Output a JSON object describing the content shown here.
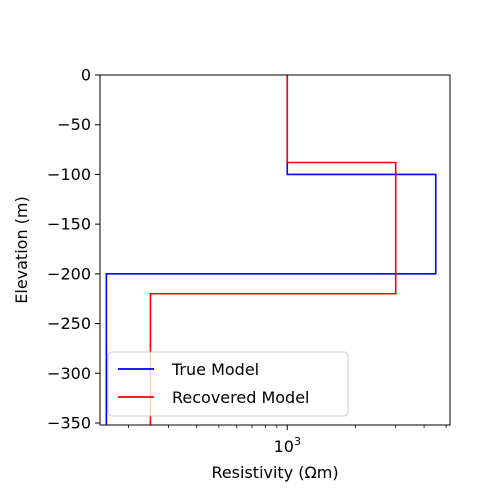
{
  "chart_data": {
    "type": "line",
    "xlabel": "Resistivity (Ωm)",
    "ylabel": "Elevation (m)",
    "xscale": "log",
    "xlim": [
      150,
      5200
    ],
    "ylim": [
      -352,
      0
    ],
    "grid": false,
    "legend_position": "lower-left",
    "x_ticks": [
      {
        "value": 1000,
        "label": "10³"
      }
    ],
    "y_ticks": [
      {
        "value": 0,
        "label": "0"
      },
      {
        "value": -50,
        "label": "−50"
      },
      {
        "value": -100,
        "label": "−100"
      },
      {
        "value": -150,
        "label": "−150"
      },
      {
        "value": -200,
        "label": "−200"
      },
      {
        "value": -250,
        "label": "−250"
      },
      {
        "value": -300,
        "label": "−300"
      },
      {
        "value": -350,
        "label": "−350"
      }
    ],
    "series": [
      {
        "name": "True Model",
        "color": "#0000ff",
        "points": [
          [
            1000,
            0
          ],
          [
            1000,
            -100
          ],
          [
            4500,
            -100
          ],
          [
            4500,
            -200
          ],
          [
            160,
            -200
          ],
          [
            160,
            -352
          ]
        ]
      },
      {
        "name": "Recovered Model",
        "color": "#ff0000",
        "points": [
          [
            1000,
            0
          ],
          [
            1000,
            -88
          ],
          [
            3000,
            -88
          ],
          [
            3000,
            -220
          ],
          [
            250,
            -220
          ],
          [
            250,
            -352
          ]
        ]
      }
    ]
  }
}
